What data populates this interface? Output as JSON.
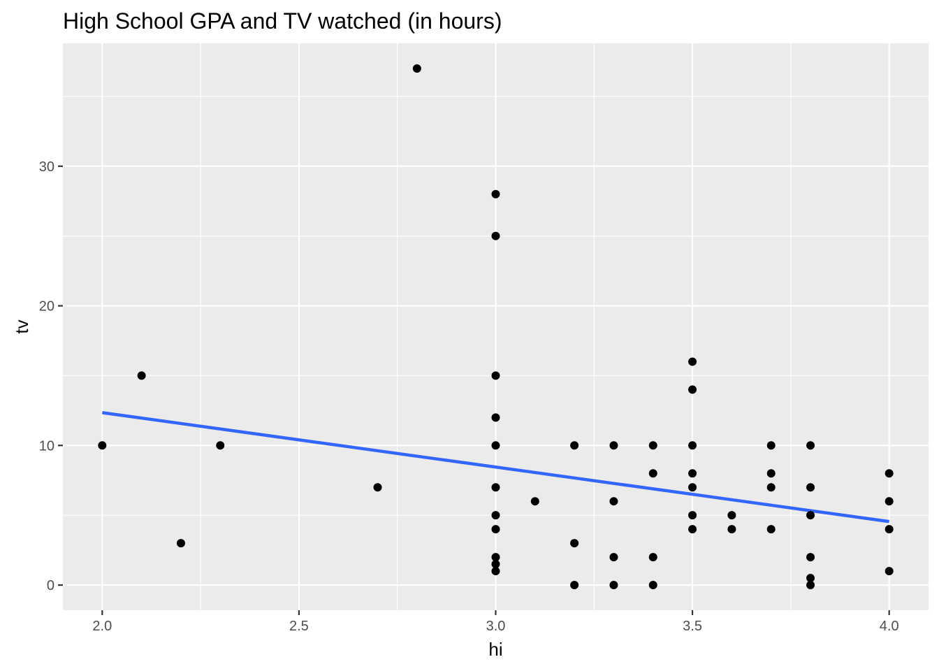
{
  "chart_data": {
    "type": "scatter",
    "title": "High School GPA and TV watched (in hours)",
    "xlabel": "hi",
    "ylabel": "tv",
    "xlim": [
      1.9,
      4.1
    ],
    "ylim": [
      -1.8,
      38.8
    ],
    "x_ticks": [
      2.0,
      2.5,
      3.0,
      3.5,
      4.0
    ],
    "x_tick_labels": [
      "2.0",
      "2.5",
      "3.0",
      "3.5",
      "4.0"
    ],
    "x_minor_ticks": [
      2.25,
      2.75,
      3.25,
      3.75
    ],
    "y_ticks": [
      0,
      10,
      20,
      30
    ],
    "y_tick_labels": [
      "0",
      "10",
      "20",
      "30"
    ],
    "y_minor_ticks": [
      5,
      15,
      25,
      35
    ],
    "grid": true,
    "colors": {
      "panel": "#ebebeb",
      "grid": "#ffffff",
      "points": "#000000",
      "trend": "#3366ff"
    },
    "points": [
      {
        "x": 2.0,
        "y": 10
      },
      {
        "x": 2.1,
        "y": 15
      },
      {
        "x": 2.2,
        "y": 3
      },
      {
        "x": 2.3,
        "y": 10
      },
      {
        "x": 2.7,
        "y": 7
      },
      {
        "x": 2.8,
        "y": 37
      },
      {
        "x": 3.0,
        "y": 28
      },
      {
        "x": 3.0,
        "y": 25
      },
      {
        "x": 3.0,
        "y": 15
      },
      {
        "x": 3.0,
        "y": 12
      },
      {
        "x": 3.0,
        "y": 10
      },
      {
        "x": 3.0,
        "y": 7
      },
      {
        "x": 3.0,
        "y": 5
      },
      {
        "x": 3.0,
        "y": 4
      },
      {
        "x": 3.0,
        "y": 2
      },
      {
        "x": 3.0,
        "y": 1.5
      },
      {
        "x": 3.0,
        "y": 1
      },
      {
        "x": 3.1,
        "y": 6
      },
      {
        "x": 3.2,
        "y": 10
      },
      {
        "x": 3.2,
        "y": 3
      },
      {
        "x": 3.2,
        "y": 0
      },
      {
        "x": 3.3,
        "y": 10
      },
      {
        "x": 3.3,
        "y": 6
      },
      {
        "x": 3.3,
        "y": 2
      },
      {
        "x": 3.3,
        "y": 0
      },
      {
        "x": 3.4,
        "y": 10
      },
      {
        "x": 3.4,
        "y": 8
      },
      {
        "x": 3.4,
        "y": 2
      },
      {
        "x": 3.4,
        "y": 0
      },
      {
        "x": 3.5,
        "y": 16
      },
      {
        "x": 3.5,
        "y": 14
      },
      {
        "x": 3.5,
        "y": 10
      },
      {
        "x": 3.5,
        "y": 8
      },
      {
        "x": 3.5,
        "y": 7
      },
      {
        "x": 3.5,
        "y": 5
      },
      {
        "x": 3.5,
        "y": 4
      },
      {
        "x": 3.6,
        "y": 5
      },
      {
        "x": 3.6,
        "y": 4
      },
      {
        "x": 3.7,
        "y": 10
      },
      {
        "x": 3.7,
        "y": 8
      },
      {
        "x": 3.7,
        "y": 7
      },
      {
        "x": 3.7,
        "y": 4
      },
      {
        "x": 3.8,
        "y": 10
      },
      {
        "x": 3.8,
        "y": 7
      },
      {
        "x": 3.8,
        "y": 5
      },
      {
        "x": 3.8,
        "y": 2
      },
      {
        "x": 3.8,
        "y": 0.5
      },
      {
        "x": 3.8,
        "y": 0
      },
      {
        "x": 4.0,
        "y": 8
      },
      {
        "x": 4.0,
        "y": 6
      },
      {
        "x": 4.0,
        "y": 4
      },
      {
        "x": 4.0,
        "y": 1
      }
    ],
    "trend_line": {
      "type": "linear",
      "start": {
        "x": 2.0,
        "y": 12.35
      },
      "end": {
        "x": 4.0,
        "y": 4.55
      }
    }
  }
}
